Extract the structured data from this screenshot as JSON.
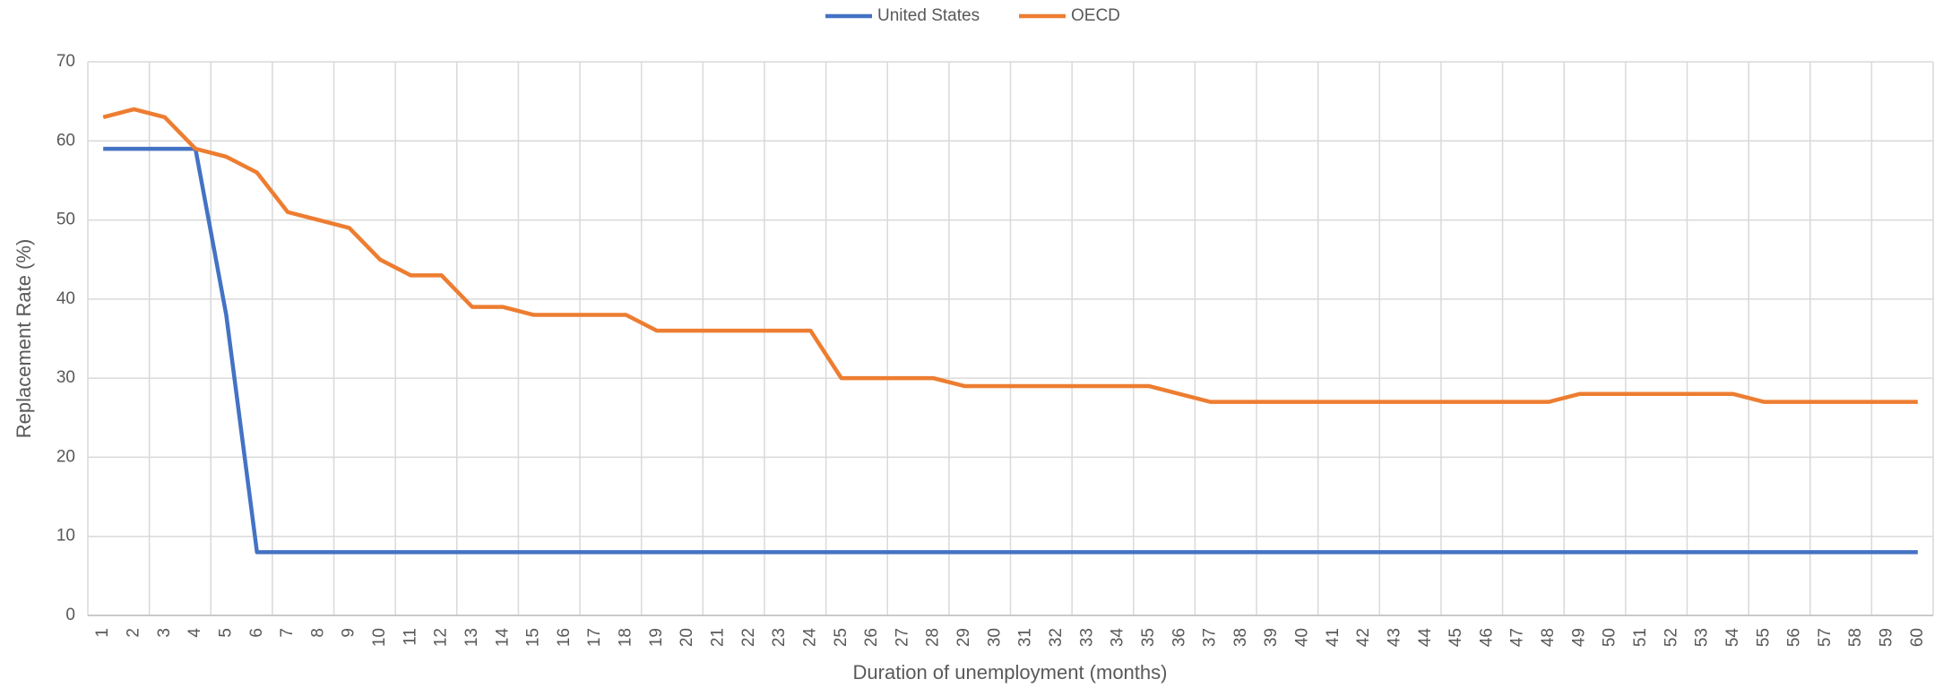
{
  "chart_data": {
    "type": "line",
    "x_label": "Duration of unemployment (months)",
    "y_label": "Replacement Rate (%)",
    "categories": [
      1,
      2,
      3,
      4,
      5,
      6,
      7,
      8,
      9,
      10,
      11,
      12,
      13,
      14,
      15,
      16,
      17,
      18,
      19,
      20,
      21,
      22,
      23,
      24,
      25,
      26,
      27,
      28,
      29,
      30,
      31,
      32,
      33,
      34,
      35,
      36,
      37,
      38,
      39,
      40,
      41,
      42,
      43,
      44,
      45,
      46,
      47,
      48,
      49,
      50,
      51,
      52,
      53,
      54,
      55,
      56,
      57,
      58,
      59,
      60
    ],
    "series": [
      {
        "name": "United States",
        "color": "#4472c4",
        "values": [
          59,
          59,
          59,
          59,
          38,
          8,
          8,
          8,
          8,
          8,
          8,
          8,
          8,
          8,
          8,
          8,
          8,
          8,
          8,
          8,
          8,
          8,
          8,
          8,
          8,
          8,
          8,
          8,
          8,
          8,
          8,
          8,
          8,
          8,
          8,
          8,
          8,
          8,
          8,
          8,
          8,
          8,
          8,
          8,
          8,
          8,
          8,
          8,
          8,
          8,
          8,
          8,
          8,
          8,
          8,
          8,
          8,
          8,
          8,
          8
        ]
      },
      {
        "name": "OECD",
        "color": "#ed7d31",
        "values": [
          63,
          64,
          63,
          59,
          58,
          56,
          51,
          50,
          49,
          45,
          43,
          43,
          39,
          39,
          38,
          38,
          38,
          38,
          36,
          36,
          36,
          36,
          36,
          36,
          30,
          30,
          30,
          30,
          29,
          29,
          29,
          29,
          29,
          29,
          29,
          28,
          27,
          27,
          27,
          27,
          27,
          27,
          27,
          27,
          27,
          27,
          27,
          27,
          28,
          28,
          28,
          28,
          28,
          28,
          27,
          27,
          27,
          27,
          27,
          27
        ]
      }
    ],
    "ylim": [
      0,
      70
    ],
    "yticks": [
      0,
      10,
      20,
      30,
      40,
      50,
      60,
      70
    ],
    "grid": true,
    "legend": "top"
  }
}
